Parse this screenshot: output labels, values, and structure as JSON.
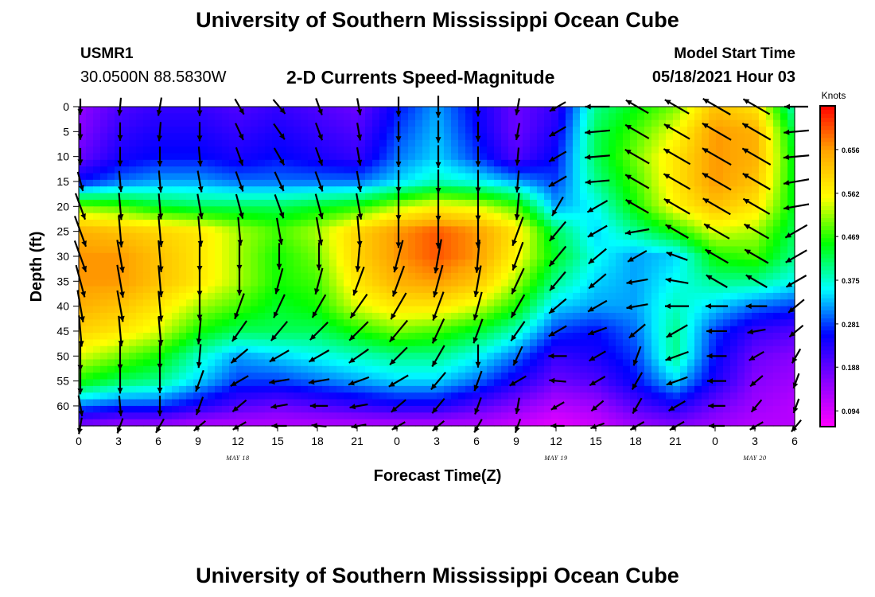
{
  "header": {
    "title": "University of Southern Mississippi Ocean Cube",
    "station_id": "USMR1",
    "station_coords": "30.0500N  88.5830W",
    "subtitle": "2-D Currents Speed-Magnitude",
    "model_start_label": "Model Start Time",
    "model_start_value": "05/18/2021 Hour 03"
  },
  "footer": {
    "title": "University of Southern Mississippi Ocean Cube"
  },
  "colors": {
    "scale": [
      "#ff00ff",
      "#8800ff",
      "#0000ff",
      "#00ffff",
      "#00ff00",
      "#ffff00",
      "#ffa500",
      "#ff0000"
    ],
    "arrow": "#000000",
    "axis": "#000000"
  },
  "chart_data": {
    "type": "heatmap",
    "title": "2-D Currents Speed-Magnitude",
    "xlabel": "Forecast Time(Z)",
    "ylabel": "Depth (ft)",
    "x_tick_labels": [
      "0",
      "3",
      "6",
      "9",
      "12",
      "15",
      "18",
      "21",
      "0",
      "3",
      "6",
      "9",
      "12",
      "15",
      "18",
      "21",
      "0",
      "3",
      "6"
    ],
    "x_hours_range": [
      0,
      54
    ],
    "date_labels": [
      {
        "hour": 12,
        "label": "MAY 18"
      },
      {
        "hour": 36,
        "label": "MAY 19"
      },
      {
        "hour": 51,
        "label": "MAY 20"
      }
    ],
    "y_ticks": [
      0,
      5,
      10,
      15,
      20,
      25,
      30,
      35,
      40,
      45,
      50,
      55,
      60
    ],
    "ylim": [
      0,
      64
    ],
    "y_inverted": true,
    "colorbar": {
      "unit": "Knots",
      "tick_labels": [
        "0.656",
        "0.562",
        "0.469",
        "0.375",
        "0.281",
        "0.188",
        "0.094"
      ],
      "ticks": [
        0.656,
        0.562,
        0.469,
        0.375,
        0.281,
        0.188,
        0.094
      ],
      "range": [
        0.06,
        0.75
      ]
    },
    "grid_hours": [
      0,
      3,
      6,
      9,
      12,
      15,
      18,
      21,
      24,
      27,
      30,
      33,
      36,
      39,
      42,
      45,
      48,
      51,
      54
    ],
    "grid_depths": [
      0,
      5,
      10,
      15,
      20,
      25,
      30,
      35,
      40,
      45,
      50,
      55,
      60,
      64
    ],
    "speed_knots": [
      [
        0.15,
        0.2,
        0.22,
        0.22,
        0.2,
        0.22,
        0.2,
        0.18,
        0.26,
        0.32,
        0.25,
        0.18,
        0.22,
        0.4,
        0.45,
        0.5,
        0.62,
        0.58,
        0.38
      ],
      [
        0.16,
        0.22,
        0.24,
        0.24,
        0.22,
        0.24,
        0.22,
        0.2,
        0.28,
        0.33,
        0.26,
        0.18,
        0.24,
        0.42,
        0.48,
        0.55,
        0.66,
        0.64,
        0.42
      ],
      [
        0.18,
        0.24,
        0.26,
        0.26,
        0.24,
        0.26,
        0.24,
        0.22,
        0.3,
        0.34,
        0.28,
        0.2,
        0.26,
        0.42,
        0.5,
        0.58,
        0.66,
        0.64,
        0.44
      ],
      [
        0.26,
        0.3,
        0.32,
        0.32,
        0.3,
        0.3,
        0.3,
        0.3,
        0.34,
        0.38,
        0.36,
        0.32,
        0.28,
        0.4,
        0.48,
        0.58,
        0.66,
        0.62,
        0.44
      ],
      [
        0.5,
        0.48,
        0.44,
        0.42,
        0.42,
        0.42,
        0.44,
        0.46,
        0.52,
        0.56,
        0.54,
        0.48,
        0.32,
        0.36,
        0.46,
        0.56,
        0.62,
        0.58,
        0.44
      ],
      [
        0.64,
        0.62,
        0.6,
        0.58,
        0.52,
        0.48,
        0.52,
        0.6,
        0.66,
        0.7,
        0.66,
        0.58,
        0.42,
        0.34,
        0.4,
        0.46,
        0.54,
        0.52,
        0.42
      ],
      [
        0.66,
        0.66,
        0.62,
        0.58,
        0.52,
        0.46,
        0.5,
        0.6,
        0.66,
        0.7,
        0.66,
        0.56,
        0.44,
        0.36,
        0.32,
        0.34,
        0.46,
        0.48,
        0.4
      ],
      [
        0.66,
        0.66,
        0.62,
        0.58,
        0.52,
        0.46,
        0.48,
        0.58,
        0.64,
        0.66,
        0.62,
        0.52,
        0.4,
        0.34,
        0.32,
        0.36,
        0.4,
        0.4,
        0.36
      ],
      [
        0.64,
        0.62,
        0.58,
        0.52,
        0.48,
        0.44,
        0.46,
        0.54,
        0.58,
        0.58,
        0.54,
        0.46,
        0.34,
        0.32,
        0.32,
        0.38,
        0.34,
        0.3,
        0.28
      ],
      [
        0.6,
        0.58,
        0.54,
        0.46,
        0.42,
        0.42,
        0.42,
        0.46,
        0.5,
        0.48,
        0.44,
        0.38,
        0.28,
        0.26,
        0.3,
        0.4,
        0.28,
        0.22,
        0.2
      ],
      [
        0.54,
        0.5,
        0.46,
        0.38,
        0.32,
        0.34,
        0.36,
        0.38,
        0.4,
        0.4,
        0.36,
        0.3,
        0.22,
        0.24,
        0.28,
        0.4,
        0.26,
        0.18,
        0.16
      ],
      [
        0.46,
        0.42,
        0.4,
        0.34,
        0.28,
        0.28,
        0.3,
        0.32,
        0.34,
        0.34,
        0.3,
        0.24,
        0.18,
        0.2,
        0.26,
        0.34,
        0.24,
        0.16,
        0.14
      ],
      [
        0.3,
        0.28,
        0.28,
        0.24,
        0.2,
        0.18,
        0.2,
        0.22,
        0.24,
        0.24,
        0.2,
        0.16,
        0.12,
        0.14,
        0.2,
        0.24,
        0.18,
        0.14,
        0.12
      ],
      [
        0.16,
        0.14,
        0.14,
        0.12,
        0.12,
        0.12,
        0.12,
        0.12,
        0.12,
        0.12,
        0.12,
        0.1,
        0.08,
        0.1,
        0.14,
        0.16,
        0.14,
        0.12,
        0.12
      ]
    ],
    "vectors": {
      "hours": [
        0,
        3,
        6,
        9,
        12,
        15,
        18,
        21,
        24,
        27,
        30,
        33,
        36,
        39,
        42,
        45,
        48,
        51,
        54
      ],
      "depths": [
        0,
        5,
        10,
        15,
        20,
        25,
        30,
        35,
        40,
        45,
        50,
        55,
        60,
        64
      ],
      "direction_deg": [
        [
          180,
          185,
          190,
          180,
          150,
          140,
          160,
          170,
          180,
          180,
          180,
          190,
          240,
          270,
          300,
          300,
          300,
          300,
          270
        ],
        [
          180,
          180,
          185,
          180,
          155,
          145,
          160,
          170,
          180,
          180,
          180,
          190,
          240,
          265,
          300,
          300,
          300,
          300,
          265
        ],
        [
          180,
          180,
          180,
          175,
          160,
          150,
          160,
          170,
          180,
          180,
          180,
          185,
          240,
          265,
          300,
          300,
          300,
          300,
          265
        ],
        [
          165,
          175,
          175,
          170,
          160,
          155,
          160,
          170,
          180,
          180,
          180,
          185,
          240,
          265,
          300,
          300,
          300,
          300,
          260
        ],
        [
          160,
          175,
          175,
          170,
          165,
          160,
          165,
          170,
          180,
          180,
          180,
          185,
          210,
          240,
          300,
          300,
          300,
          300,
          260
        ],
        [
          160,
          175,
          175,
          175,
          175,
          170,
          170,
          175,
          180,
          180,
          180,
          200,
          220,
          240,
          260,
          300,
          300,
          300,
          240
        ],
        [
          160,
          170,
          175,
          180,
          180,
          180,
          180,
          185,
          195,
          190,
          185,
          200,
          220,
          230,
          240,
          290,
          300,
          300,
          240
        ],
        [
          165,
          170,
          175,
          180,
          180,
          195,
          195,
          200,
          200,
          195,
          190,
          205,
          220,
          230,
          260,
          280,
          300,
          300,
          240
        ],
        [
          170,
          170,
          175,
          180,
          200,
          205,
          210,
          215,
          210,
          200,
          195,
          210,
          230,
          240,
          260,
          270,
          270,
          270,
          230
        ],
        [
          175,
          175,
          175,
          185,
          215,
          220,
          225,
          225,
          220,
          205,
          200,
          215,
          240,
          250,
          230,
          240,
          270,
          260,
          230
        ],
        [
          180,
          180,
          180,
          185,
          230,
          240,
          240,
          235,
          225,
          210,
          180,
          205,
          270,
          240,
          200,
          250,
          270,
          240,
          210
        ],
        [
          180,
          180,
          180,
          200,
          240,
          260,
          260,
          250,
          240,
          220,
          200,
          240,
          275,
          240,
          210,
          250,
          270,
          230,
          200
        ],
        [
          170,
          175,
          180,
          200,
          230,
          260,
          270,
          260,
          230,
          220,
          200,
          190,
          240,
          230,
          210,
          240,
          270,
          220,
          200
        ],
        [
          190,
          200,
          210,
          230,
          240,
          270,
          275,
          260,
          240,
          230,
          210,
          200,
          270,
          250,
          240,
          240,
          270,
          240,
          220
        ]
      ]
    }
  }
}
